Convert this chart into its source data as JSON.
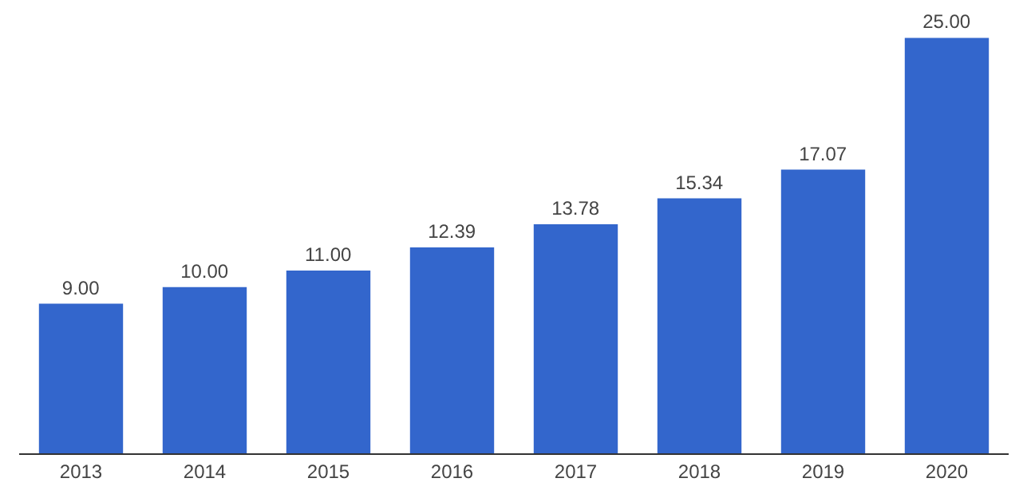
{
  "chart_data": {
    "type": "bar",
    "categories": [
      "2013",
      "2014",
      "2015",
      "2016",
      "2017",
      "2018",
      "2019",
      "2020"
    ],
    "values": [
      9.0,
      10.0,
      11.0,
      12.39,
      13.78,
      15.34,
      17.07,
      25.0
    ],
    "value_labels": [
      "9.00",
      "10.00",
      "11.00",
      "12.39",
      "13.78",
      "15.34",
      "17.07",
      "25.00"
    ],
    "color": "#3366cc",
    "tick_labels": "x"
  }
}
